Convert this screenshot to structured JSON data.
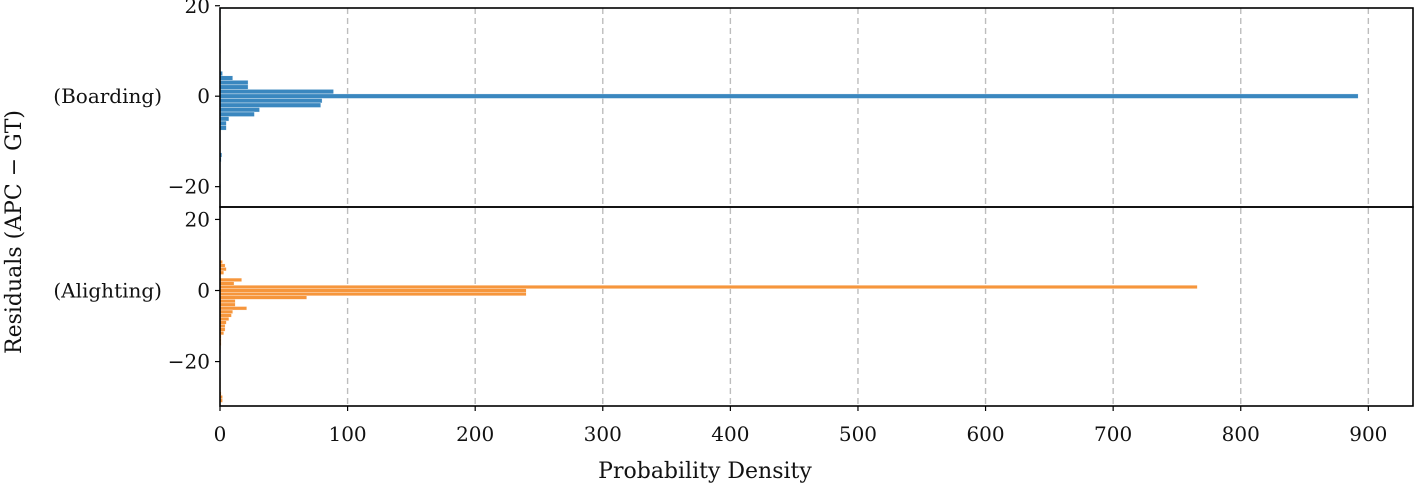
{
  "chart_data": {
    "type": "bar",
    "orientation": "horizontal",
    "ylabel": "Residuals (APC − GT)",
    "xlabel": "Probability Density",
    "xlim": [
      0,
      935
    ],
    "xticks": [
      0,
      100,
      200,
      300,
      400,
      500,
      600,
      700,
      800,
      900
    ],
    "grid": "vertical-dashed",
    "bin_width": 1,
    "panels": [
      {
        "label": "(Boarding)",
        "color": "#3a87bf",
        "ylim": [
          -24.5,
          19.5
        ],
        "yticks": [
          20,
          0,
          -20
        ],
        "ytick_labels": [
          "20",
          "0",
          "−20"
        ],
        "bins": [
          {
            "residual": 19,
            "density": 0.5
          },
          {
            "residual": 15,
            "density": 0.3
          },
          {
            "residual": 10,
            "density": 0.2
          },
          {
            "residual": 5,
            "density": 2
          },
          {
            "residual": 4,
            "density": 10
          },
          {
            "residual": 3,
            "density": 22
          },
          {
            "residual": 2,
            "density": 22
          },
          {
            "residual": 1,
            "density": 89
          },
          {
            "residual": 0,
            "density": 892
          },
          {
            "residual": -1,
            "density": 80
          },
          {
            "residual": -2,
            "density": 79
          },
          {
            "residual": -3,
            "density": 31
          },
          {
            "residual": -4,
            "density": 27
          },
          {
            "residual": -5,
            "density": 7
          },
          {
            "residual": -6,
            "density": 5
          },
          {
            "residual": -7,
            "density": 5
          },
          {
            "residual": -13,
            "density": 1.5
          },
          {
            "residual": -14,
            "density": 1
          },
          {
            "residual": -20,
            "density": 0.5
          },
          {
            "residual": -21,
            "density": 0.5
          }
        ]
      },
      {
        "label": "(Alighting)",
        "color": "#f6963c",
        "ylim": [
          -32.5,
          23.5
        ],
        "yticks": [
          20,
          0,
          -20
        ],
        "ytick_labels": [
          "20",
          "0",
          "−20"
        ],
        "bins": [
          {
            "residual": 22,
            "density": 0.5
          },
          {
            "residual": 16,
            "density": 0.5
          },
          {
            "residual": 14,
            "density": 0.5
          },
          {
            "residual": 8,
            "density": 2
          },
          {
            "residual": 7,
            "density": 4
          },
          {
            "residual": 6,
            "density": 5
          },
          {
            "residual": 5,
            "density": 3
          },
          {
            "residual": 3,
            "density": 17
          },
          {
            "residual": 2,
            "density": 11
          },
          {
            "residual": 1,
            "density": 766
          },
          {
            "residual": 0,
            "density": 240
          },
          {
            "residual": -1,
            "density": 240
          },
          {
            "residual": -2,
            "density": 68
          },
          {
            "residual": -3,
            "density": 12
          },
          {
            "residual": -4,
            "density": 12
          },
          {
            "residual": -5,
            "density": 21
          },
          {
            "residual": -6,
            "density": 10
          },
          {
            "residual": -7,
            "density": 9
          },
          {
            "residual": -8,
            "density": 7
          },
          {
            "residual": -9,
            "density": 5
          },
          {
            "residual": -10,
            "density": 4
          },
          {
            "residual": -11,
            "density": 4
          },
          {
            "residual": -12,
            "density": 3
          },
          {
            "residual": -13,
            "density": 1
          },
          {
            "residual": -14,
            "density": 1
          },
          {
            "residual": -15,
            "density": 1
          },
          {
            "residual": -16,
            "density": 0.5
          },
          {
            "residual": -17,
            "density": 0.5
          },
          {
            "residual": -25,
            "density": 0.5
          },
          {
            "residual": -26,
            "density": 0.5
          },
          {
            "residual": -27,
            "density": 0.5
          },
          {
            "residual": -28,
            "density": 0.5
          },
          {
            "residual": -29,
            "density": 1
          },
          {
            "residual": -30,
            "density": 2
          },
          {
            "residual": -31,
            "density": 2
          }
        ]
      }
    ]
  }
}
